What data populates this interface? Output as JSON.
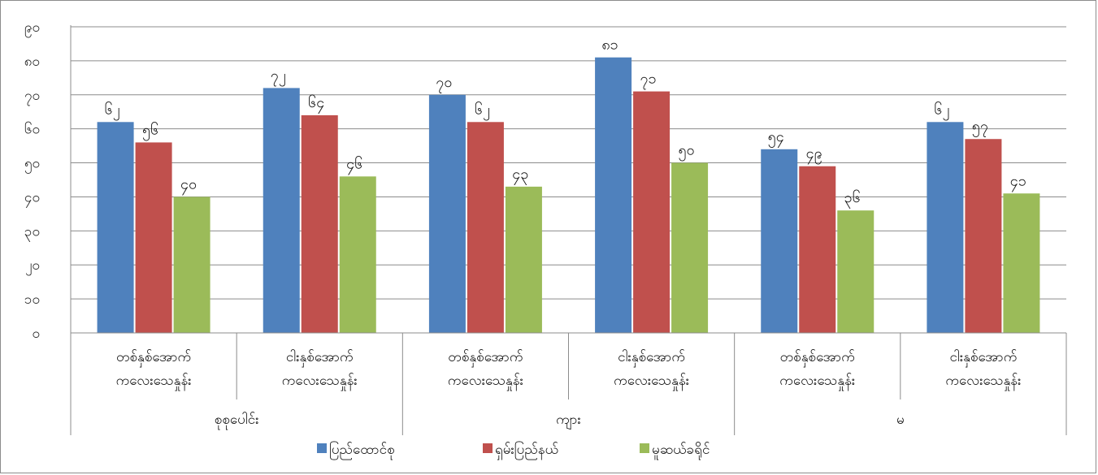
{
  "chart_data": {
    "type": "bar",
    "ylim": [
      0,
      90
    ],
    "yticks": [
      {
        "value": 0,
        "label": "၀"
      },
      {
        "value": 10,
        "label": "၁၀"
      },
      {
        "value": 20,
        "label": "၂၀"
      },
      {
        "value": 30,
        "label": "၃၀"
      },
      {
        "value": 40,
        "label": "၄၀"
      },
      {
        "value": 50,
        "label": "၅၀"
      },
      {
        "value": 60,
        "label": "၆၀"
      },
      {
        "value": 70,
        "label": "၇၀"
      },
      {
        "value": 80,
        "label": "၈၀"
      },
      {
        "value": 90,
        "label": "၉၀"
      }
    ],
    "grid": true,
    "legend_position": "bottom",
    "groups": [
      {
        "label": "စုစုပေါင်း",
        "categories": [
          [
            "တစ်နှစ်အောက်",
            "ကလေးသေနှုန်း"
          ],
          [
            "ငါးနှစ်အောက်",
            "ကလေးသေနှုန်း"
          ]
        ]
      },
      {
        "label": "ကျား",
        "categories": [
          [
            "တစ်နှစ်အောက်",
            "ကလေးသေနှုန်း"
          ],
          [
            "ငါးနှစ်အောက်",
            "ကလေးသေနှုန်း"
          ]
        ]
      },
      {
        "label": "မ",
        "categories": [
          [
            "တစ်နှစ်အောက်",
            "ကလေးသေနှုန်း"
          ],
          [
            "ငါးနှစ်အောက်",
            "ကလေးသေနှုန်း"
          ]
        ]
      }
    ],
    "series": [
      {
        "name": "ပြည်ထောင်စု",
        "color": "#4f81bd",
        "values": [
          62,
          72,
          70,
          81,
          54,
          62
        ],
        "labels": [
          "၆၂",
          "၇၂",
          "၇၀",
          "၈၁",
          "၅၄",
          "၆၂"
        ]
      },
      {
        "name": "ရှမ်းပြည်နယ်",
        "color": "#c0504d",
        "values": [
          56,
          64,
          62,
          71,
          49,
          57
        ],
        "labels": [
          "၅၆",
          "၆၄",
          "၆၂",
          "၇၁",
          "၄၉",
          "၅၇"
        ]
      },
      {
        "name": "မူဆယ်ခရိုင်",
        "color": "#9bbb59",
        "values": [
          40,
          46,
          43,
          50,
          36,
          41
        ],
        "labels": [
          "၄၀",
          "၄၆",
          "၄၃",
          "၅၀",
          "၃၆",
          "၄၁"
        ]
      }
    ]
  }
}
